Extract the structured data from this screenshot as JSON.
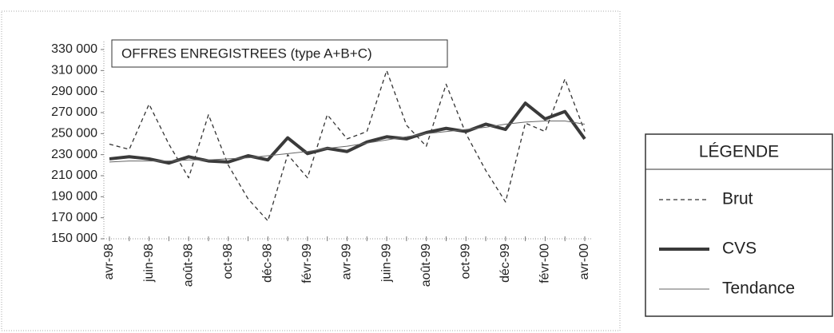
{
  "chart_data": {
    "type": "line",
    "title": "OFFRES ENREGISTREES (type A+B+C)",
    "legend_title": "LÉGENDE",
    "legend": "right",
    "categories": [
      "avr-98",
      null,
      "juin-98",
      null,
      "août-98",
      null,
      "oct-98",
      null,
      "déc-98",
      null,
      "févr-99",
      null,
      "avr-99",
      null,
      "juin-99",
      null,
      "août-99",
      null,
      "oct-99",
      null,
      "déc-99",
      null,
      "févr-00",
      null,
      "avr-00"
    ],
    "series": [
      {
        "name": "Brut",
        "color": "#333333",
        "style": "dashed",
        "values": [
          240000,
          235000,
          278000,
          240000,
          208000,
          268000,
          220000,
          188000,
          167000,
          230000,
          208000,
          268000,
          245000,
          252000,
          310000,
          258000,
          238000,
          297000,
          250000,
          215000,
          185000,
          260000,
          252000,
          302000,
          252000
        ]
      },
      {
        "name": "CVS",
        "color": "#3a3a3a",
        "style": "bold",
        "values": [
          226000,
          228000,
          226000,
          222000,
          228000,
          224000,
          223000,
          229000,
          225000,
          246000,
          231000,
          236000,
          233000,
          242000,
          247000,
          245000,
          251000,
          255000,
          252000,
          259000,
          254000,
          279000,
          264000,
          271000,
          245000
        ]
      },
      {
        "name": "Tendance",
        "color": "#666666",
        "style": "thin",
        "values": [
          223000,
          224000,
          224000,
          224000,
          225000,
          225000,
          226000,
          227000,
          229000,
          231000,
          233000,
          236000,
          238000,
          241000,
          244000,
          247000,
          250000,
          252000,
          254000,
          256000,
          259000,
          261000,
          262000,
          262000,
          259000
        ]
      }
    ],
    "ylim": [
      150000,
      330000
    ],
    "yticks": [
      {
        "value": 150000,
        "label": "150 000"
      },
      {
        "value": 170000,
        "label": "170 000"
      },
      {
        "value": 190000,
        "label": "190 000"
      },
      {
        "value": 210000,
        "label": "210 000"
      },
      {
        "value": 230000,
        "label": "230 000"
      },
      {
        "value": 250000,
        "label": "250 000"
      },
      {
        "value": 270000,
        "label": "270 000"
      },
      {
        "value": 290000,
        "label": "290 000"
      },
      {
        "value": 310000,
        "label": "310 000"
      },
      {
        "value": 330000,
        "label": "330 000"
      }
    ],
    "grid": false
  }
}
